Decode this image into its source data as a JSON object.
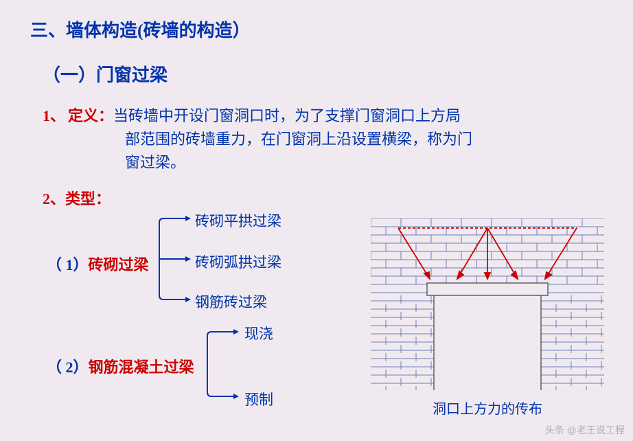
{
  "title": "三、墙体构造(砖墙的构造）",
  "subtitle": "（一）门窗过梁",
  "definition": {
    "number": "1、",
    "label": "定义：",
    "line1_head": "当砖墙中开设门窗洞口时，为了支撑门窗洞口上方局",
    "line2": "部范围的砖墙重力，在门窗洞上沿设置横梁，称为门",
    "line3": "窗过梁。"
  },
  "types": {
    "number": "2、",
    "label": "类型：",
    "items": [
      {
        "num": "（ 1）",
        "name": "砖砌过梁",
        "leaves": [
          "砖砌平拱过梁",
          "砖砌弧拱过梁",
          "钢筋砖过梁"
        ]
      },
      {
        "num": "（ 2）",
        "name": "钢筋混凝土过梁",
        "leaves": [
          "现浇",
          "预制"
        ]
      }
    ]
  },
  "diagram": {
    "caption": "洞口上方力的传布",
    "brick_stroke": "#6a7eb8",
    "lintel_stroke": "#555560",
    "arrow_color": "#cc0000",
    "line_width": 1.4
  },
  "watermark": "头条 @老王说工程",
  "palette": {
    "blue": "#0033aa",
    "red": "#cc0000",
    "bg": "#f0eaf0",
    "diagram_blue": "#6a7eb8"
  }
}
